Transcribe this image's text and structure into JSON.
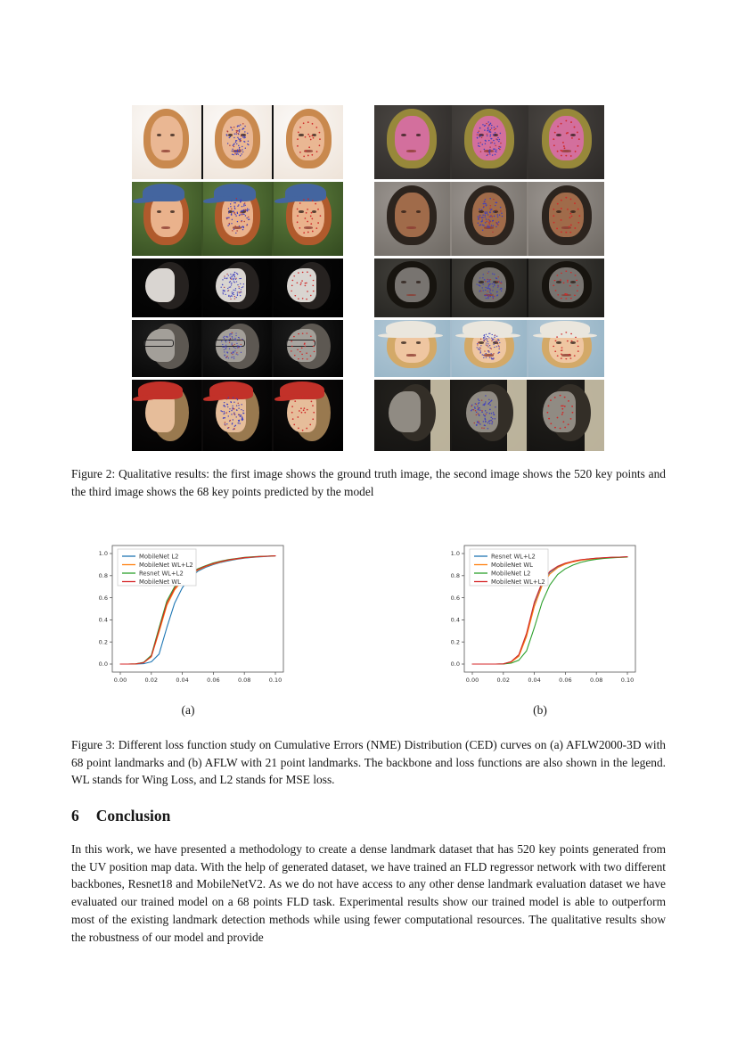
{
  "figure2": {
    "caption": "Figure 2: Qualitative results: the first image shows the ground truth image, the second image shows the 520 key points and the third image shows the 68 key points predicted by the model",
    "image_types": [
      "ground truth",
      "520 key points",
      "68 key points"
    ],
    "dense_dot_colors": [
      "#3f3fbe",
      "#b03838"
    ],
    "sparse_dot_color": "#cf2a2a",
    "rows": [
      {
        "left": {
          "desc": "woman with blonde hair, tilted head, white background",
          "bg": "#fbf9f7",
          "bg2": "#eee3d8",
          "skin": "#eab793",
          "hair": "#c9894e",
          "hat": null,
          "hat_style": null,
          "variant": "front",
          "glasses": false,
          "gap": "#111111"
        },
        "right": {
          "desc": "woman with pink face paint on dark background",
          "bg": "#4a4642",
          "bg2": "#2b2826",
          "skin": "#d36f9d",
          "hair": "#97883a",
          "hat": null,
          "hat_style": null,
          "variant": "front",
          "glasses": false,
          "gap": "#35322f"
        }
      },
      {
        "left": {
          "desc": "smiling woman with blue cap and auburn hair, green foliage background",
          "bg": "#61813f",
          "bg2": "#32491f",
          "skin": "#eab28c",
          "hair": "#b05a2c",
          "hat": "#44659f",
          "hat_style": "cap",
          "variant": "front",
          "glasses": false,
          "gap": "#3d5426"
        },
        "right": {
          "desc": "woman with long dark hair on gray background",
          "bg": "#9b9590",
          "bg2": "#6e6963",
          "skin": "#a06b4a",
          "hair": "#2c241e",
          "hat": null,
          "hat_style": null,
          "variant": "front",
          "glasses": false,
          "gap": "#8d8781"
        }
      },
      {
        "left": {
          "desc": "grayscale profile portrait on black background",
          "bg": "#0a0a0a",
          "bg2": "#000000",
          "skin": "#d9d5d1",
          "hair": "#262220",
          "hat": null,
          "hat_style": null,
          "variant": "profile",
          "glasses": false,
          "gap": "#050505"
        },
        "right": {
          "desc": "dark grayscale portrait looking down",
          "bg": "#413f3a",
          "bg2": "#201f1c",
          "skin": "#787470",
          "hair": "#17140f",
          "hat": null,
          "hat_style": null,
          "variant": "front",
          "glasses": false,
          "gap": "#151412"
        }
      },
      {
        "left": {
          "desc": "grayscale man with glasses in profile on dark background",
          "bg": "#1d1d1d",
          "bg2": "#020202",
          "skin": "#a39f99",
          "hair": "#5d5852",
          "hat": null,
          "hat_style": null,
          "variant": "profile",
          "glasses": true,
          "gap": "#111111"
        },
        "right": {
          "desc": "girl with white bucket hat on light blue background",
          "bg": "#b3c8d6",
          "bg2": "#93b2c4",
          "skin": "#efc6a1",
          "hair": "#d3a968",
          "hat": "#eae6dd",
          "hat_style": "bucket",
          "variant": "front",
          "glasses": false,
          "gap": "#a5bccc"
        }
      },
      {
        "left": {
          "desc": "person with red cap in profile on black background",
          "bg": "#100d0d",
          "bg2": "#000000",
          "skin": "#e6bd9a",
          "hair": "#99794f",
          "hat": "#c23129",
          "hat_style": "cap",
          "variant": "profile",
          "glasses": false,
          "gap": "#0d0b0b"
        },
        "right": {
          "desc": "dark profile portrait with bright window light",
          "bg": "#23211d",
          "bg2": "#121110",
          "skin": "#908b83",
          "hair": "#332e27",
          "hat": null,
          "hat_style": null,
          "variant": "profile",
          "glasses": false,
          "gap": "#1b1916",
          "lightbar": "#d8cfb4"
        }
      }
    ]
  },
  "figure3": {
    "caption": "Figure 3: Different loss function study on Cumulative Errors (NME) Distribution (CED) curves on (a) AFLW2000-3D with 68 point landmarks and (b) AFLW with 21 point landmarks. The backbone and loss functions are also shown in the legend. WL stands for Wing Loss, and L2 stands for MSE loss."
  },
  "section": {
    "number": "6",
    "title": "Conclusion",
    "body": "In this work, we have presented a methodology to create a dense landmark dataset that has 520 key points generated from the UV position map data. With the help of generated dataset, we have trained an FLD regressor network with two different backbones, Resnet18 and MobileNetV2. As we do not have access to any other dense landmark evaluation dataset we have evaluated our trained model on a 68 points FLD task. Experimental results show our trained model is able to outperform most of the existing landmark detection methods while using fewer computational resources. The qualitative results show the robustness of our model and provide"
  },
  "chart_data": [
    {
      "type": "line",
      "sublabel": "(a)",
      "title": "CED curves on AFLW2000-3D with 68 point landmarks",
      "xlabel": "",
      "ylabel": "",
      "xlim": [
        0.0,
        0.1
      ],
      "ylim": [
        0.0,
        1.0
      ],
      "xticks": [
        0.0,
        0.02,
        0.04,
        0.06,
        0.08,
        0.1
      ],
      "yticks": [
        0.0,
        0.2,
        0.4,
        0.6,
        0.8,
        1.0
      ],
      "grid": false,
      "legend_position": "upper left",
      "x": [
        0,
        0.005,
        0.01,
        0.015,
        0.02,
        0.025,
        0.03,
        0.035,
        0.04,
        0.045,
        0.05,
        0.055,
        0.06,
        0.065,
        0.07,
        0.075,
        0.08,
        0.085,
        0.09,
        0.095,
        0.1
      ],
      "series": [
        {
          "name": "MobileNet L2",
          "color": "#1f77b4",
          "y": [
            0,
            0,
            0,
            0.003,
            0.02,
            0.09,
            0.33,
            0.55,
            0.69,
            0.78,
            0.84,
            0.875,
            0.9,
            0.92,
            0.935,
            0.948,
            0.958,
            0.965,
            0.97,
            0.974,
            0.978
          ]
        },
        {
          "name": "MobileNet WL+L2",
          "color": "#ff7f0e",
          "y": [
            0,
            0,
            0.002,
            0.012,
            0.065,
            0.29,
            0.53,
            0.67,
            0.755,
            0.81,
            0.85,
            0.882,
            0.906,
            0.925,
            0.94,
            0.951,
            0.961,
            0.967,
            0.972,
            0.976,
            0.979
          ]
        },
        {
          "name": "Resnet WL+L2",
          "color": "#2ca02c",
          "y": [
            0,
            0,
            0.002,
            0.015,
            0.08,
            0.33,
            0.57,
            0.7,
            0.78,
            0.825,
            0.862,
            0.89,
            0.915,
            0.932,
            0.946,
            0.956,
            0.965,
            0.97,
            0.974,
            0.977,
            0.98
          ]
        },
        {
          "name": "MobileNet WL",
          "color": "#d62728",
          "y": [
            0,
            0,
            0.002,
            0.013,
            0.07,
            0.31,
            0.55,
            0.685,
            0.77,
            0.818,
            0.856,
            0.886,
            0.91,
            0.928,
            0.943,
            0.953,
            0.963,
            0.968,
            0.973,
            0.976,
            0.979
          ]
        }
      ]
    },
    {
      "type": "line",
      "sublabel": "(b)",
      "title": "CED curves on AFLW with 21 point landmarks",
      "xlabel": "",
      "ylabel": "",
      "xlim": [
        0.0,
        0.1
      ],
      "ylim": [
        0.0,
        1.0
      ],
      "xticks": [
        0.0,
        0.02,
        0.04,
        0.06,
        0.08,
        0.1
      ],
      "yticks": [
        0.0,
        0.2,
        0.4,
        0.6,
        0.8,
        1.0
      ],
      "grid": false,
      "legend_position": "upper left",
      "x": [
        0,
        0.005,
        0.01,
        0.015,
        0.02,
        0.025,
        0.03,
        0.035,
        0.04,
        0.045,
        0.05,
        0.055,
        0.06,
        0.065,
        0.07,
        0.075,
        0.08,
        0.085,
        0.09,
        0.095,
        0.1
      ],
      "series": [
        {
          "name": "Resnet WL+L2",
          "color": "#1f77b4",
          "y": [
            0,
            0,
            0,
            0,
            0.002,
            0.02,
            0.08,
            0.27,
            0.55,
            0.73,
            0.83,
            0.88,
            0.91,
            0.928,
            0.942,
            0.951,
            0.957,
            0.961,
            0.965,
            0.967,
            0.97
          ]
        },
        {
          "name": "MobileNet WL",
          "color": "#ff7f0e",
          "y": [
            0,
            0,
            0,
            0,
            0.002,
            0.018,
            0.07,
            0.25,
            0.52,
            0.71,
            0.815,
            0.872,
            0.904,
            0.924,
            0.939,
            0.948,
            0.955,
            0.96,
            0.963,
            0.966,
            0.968
          ]
        },
        {
          "name": "MobileNet L2",
          "color": "#2ca02c",
          "y": [
            0,
            0,
            0,
            0,
            0,
            0.008,
            0.035,
            0.12,
            0.33,
            0.56,
            0.715,
            0.81,
            0.862,
            0.896,
            0.92,
            0.937,
            0.948,
            0.956,
            0.961,
            0.965,
            0.968
          ]
        },
        {
          "name": "MobileNet WL+L2",
          "color": "#d62728",
          "y": [
            0,
            0,
            0,
            0,
            0.002,
            0.022,
            0.085,
            0.28,
            0.56,
            0.74,
            0.838,
            0.885,
            0.913,
            0.931,
            0.944,
            0.952,
            0.958,
            0.962,
            0.966,
            0.968,
            0.971
          ]
        }
      ]
    }
  ]
}
